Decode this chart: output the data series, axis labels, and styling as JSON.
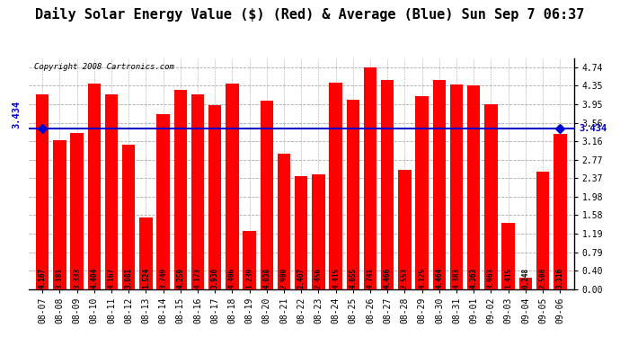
{
  "title": "Daily Solar Energy Value ($) (Red) & Average (Blue) Sun Sep 7 06:37",
  "copyright": "Copyright 2008 Cartronics.com",
  "average": 3.434,
  "categories": [
    "08-07",
    "08-08",
    "08-09",
    "08-10",
    "08-11",
    "08-12",
    "08-13",
    "08-14",
    "08-15",
    "08-16",
    "08-17",
    "08-18",
    "08-19",
    "08-20",
    "08-21",
    "08-22",
    "08-23",
    "08-24",
    "08-25",
    "08-26",
    "08-27",
    "08-28",
    "08-29",
    "08-30",
    "08-31",
    "09-01",
    "09-02",
    "09-03",
    "09-04",
    "09-05",
    "09-06"
  ],
  "values": [
    4.167,
    3.181,
    3.333,
    4.404,
    4.167,
    3.081,
    1.524,
    3.749,
    4.259,
    4.173,
    3.93,
    4.406,
    1.239,
    4.038,
    2.9,
    2.407,
    2.456,
    4.415,
    4.055,
    4.741,
    4.466,
    2.553,
    4.125,
    4.464,
    4.383,
    4.363,
    3.963,
    1.415,
    0.248,
    2.508,
    3.316
  ],
  "bar_color": "#ff0000",
  "avg_line_color": "#0000cc",
  "background_color": "#ffffff",
  "plot_bg_color": "#ffffff",
  "grid_color": "#c8c8c8",
  "yticks": [
    0.0,
    0.4,
    0.79,
    1.19,
    1.58,
    1.98,
    2.37,
    2.77,
    3.16,
    3.56,
    3.95,
    4.35,
    4.74
  ],
  "ylim": [
    0.0,
    4.94
  ],
  "title_fontsize": 11,
  "tick_fontsize": 7,
  "bar_label_fontsize": 5.5
}
